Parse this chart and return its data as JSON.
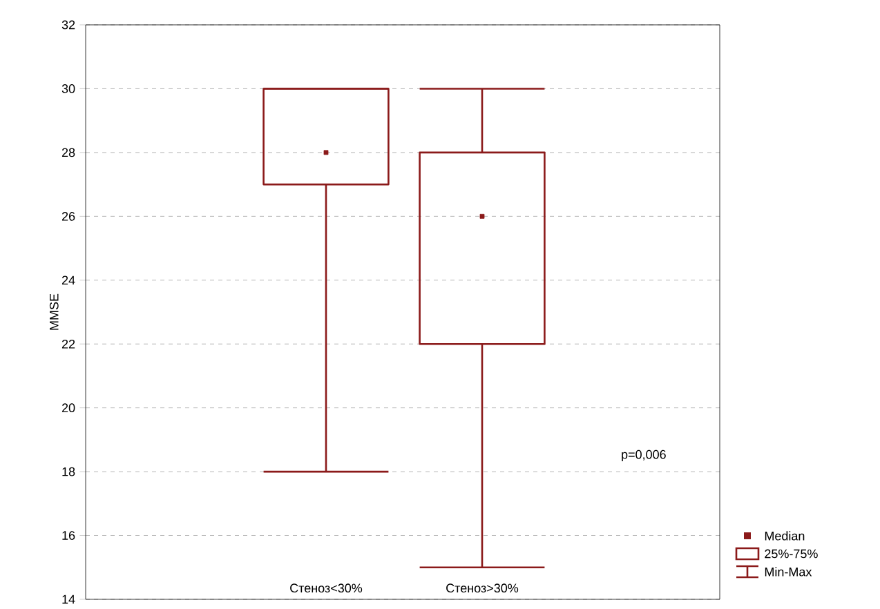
{
  "chart_data": {
    "type": "box",
    "ylabel": "MMSE",
    "categories": [
      "Стеноз<30%",
      "Стеноз>30%"
    ],
    "boxes": [
      {
        "low": 18,
        "q1": 27,
        "median": 28,
        "q3": 30,
        "high": 30
      },
      {
        "low": 15,
        "q1": 22,
        "median": 26,
        "q3": 28,
        "high": 30
      }
    ],
    "color": "#8b1a1a",
    "ylim": [
      14,
      32
    ],
    "yticks": [
      14,
      16,
      18,
      20,
      22,
      24,
      26,
      28,
      30,
      32
    ],
    "grid": "y",
    "marker": "square",
    "annotations": [
      "p=0,006",
      "Median",
      "25%-75%",
      "Min-Max"
    ]
  }
}
